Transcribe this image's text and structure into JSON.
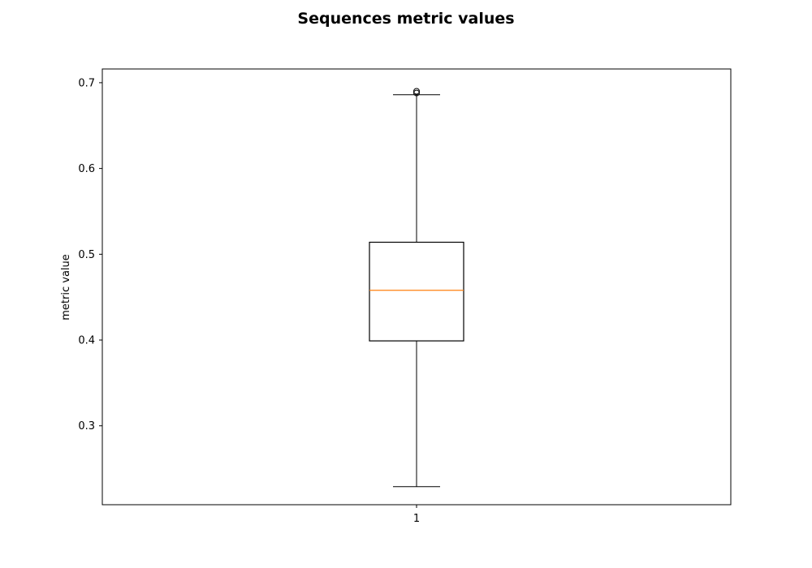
{
  "chart_data": {
    "type": "box",
    "title": "Sequences metric values",
    "xlabel": "",
    "ylabel": "metric value",
    "ylim": [
      0.208,
      0.716
    ],
    "yticks": [
      0.3,
      0.4,
      0.5,
      0.6,
      0.7
    ],
    "ytick_labels": [
      "0.3",
      "0.4",
      "0.5",
      "0.6",
      "0.7"
    ],
    "categories": [
      "1"
    ],
    "boxes": [
      {
        "category": "1",
        "whisker_low": 0.229,
        "q1": 0.399,
        "median": 0.458,
        "q3": 0.514,
        "whisker_high": 0.686,
        "outliers": [
          0.688,
          0.69
        ]
      }
    ],
    "grid": false,
    "colors": {
      "box": "#000000",
      "median": "#ff7f0e",
      "outlier": "#000000"
    }
  }
}
